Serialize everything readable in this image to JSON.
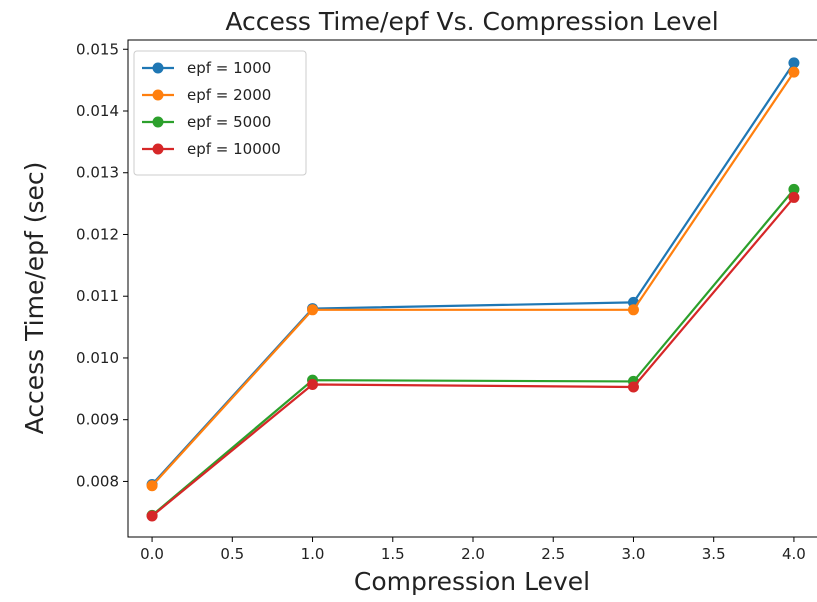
{
  "chart_data": {
    "type": "line",
    "title": "Access Time/epf Vs. Compression Level",
    "xlabel": "Compression Level",
    "ylabel": "Access Time/epf (sec)",
    "xlim": [
      -0.15,
      4.15
    ],
    "ylim": [
      0.0071,
      0.01515
    ],
    "x_ticks": [
      0.0,
      0.5,
      1.0,
      1.5,
      2.0,
      2.5,
      3.0,
      3.5,
      4.0
    ],
    "x_tick_labels": [
      "0.0",
      "0.5",
      "1.0",
      "1.5",
      "2.0",
      "2.5",
      "3.0",
      "3.5",
      "4.0"
    ],
    "y_ticks": [
      0.008,
      0.009,
      0.01,
      0.011,
      0.012,
      0.013,
      0.014,
      0.015
    ],
    "y_tick_labels": [
      "0.008",
      "0.009",
      "0.010",
      "0.011",
      "0.012",
      "0.013",
      "0.014",
      "0.015"
    ],
    "legend_position": "top-left",
    "grid": false,
    "x": [
      0,
      1,
      3,
      4
    ],
    "series": [
      {
        "name": "epf = 1000",
        "color": "#1f77b4",
        "values": [
          0.00795,
          0.0108,
          0.0109,
          0.01478
        ]
      },
      {
        "name": "epf = 2000",
        "color": "#ff7f0e",
        "values": [
          0.00793,
          0.01078,
          0.01078,
          0.01463
        ]
      },
      {
        "name": "epf = 5000",
        "color": "#2ca02c",
        "values": [
          0.00745,
          0.00964,
          0.00962,
          0.01273
        ]
      },
      {
        "name": "epf = 10000",
        "color": "#d62728",
        "values": [
          0.00744,
          0.00957,
          0.00953,
          0.0126
        ]
      }
    ]
  }
}
